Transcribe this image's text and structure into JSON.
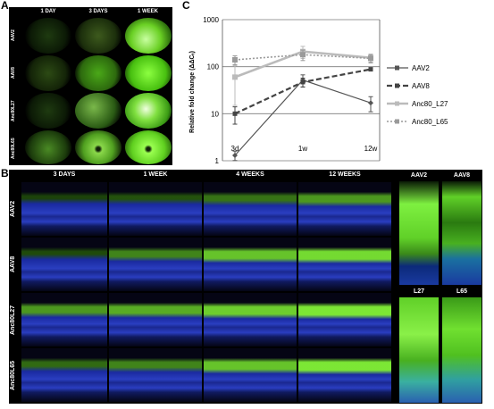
{
  "panel_labels": {
    "a": "A",
    "b": "B",
    "c": "C"
  },
  "panel_a": {
    "columns": [
      "1 DAY",
      "3 DAYS",
      "1 WEEK"
    ],
    "rows": [
      "AAV2",
      "AAV8",
      "Anc80L27",
      "Anc80L65"
    ]
  },
  "panel_b": {
    "columns": [
      "3 DAYS",
      "1 WEEK",
      "4 WEEKS",
      "12 WEEKS"
    ],
    "rows": [
      "AAV2",
      "AAV8",
      "Anc80L27",
      "Anc80L65"
    ],
    "zoom_labels": [
      "AAV2",
      "AAV8",
      "L27",
      "L65"
    ]
  },
  "chart_data": {
    "type": "line",
    "categories": [
      "3d",
      "1w",
      "12w"
    ],
    "ylabel": "Relative fold change (ΔΔCₜ)",
    "yscale": "log",
    "ylim": [
      1,
      1000
    ],
    "yticks": [
      "1",
      "10",
      "100",
      "1000"
    ],
    "grid": "horizontal",
    "legend": "right",
    "series": [
      {
        "name": "AAV2",
        "values": [
          1.3,
          52,
          17
        ],
        "err": [
          0.3,
          15,
          6
        ],
        "color": "#555555",
        "style": "solid-thin"
      },
      {
        "name": "AAV8",
        "values": [
          10,
          47,
          88
        ],
        "err": [
          4,
          10,
          5
        ],
        "color": "#444444",
        "style": "dashed-thick"
      },
      {
        "name": "Anc80_L27",
        "values": [
          60,
          210,
          155
        ],
        "err": [
          45,
          60,
          30
        ],
        "color": "#bbbbbb",
        "style": "solid-thick"
      },
      {
        "name": "Anc80_L65",
        "values": [
          140,
          180,
          150
        ],
        "err": [
          30,
          45,
          30
        ],
        "color": "#9a9a9a",
        "style": "dotted"
      }
    ]
  }
}
